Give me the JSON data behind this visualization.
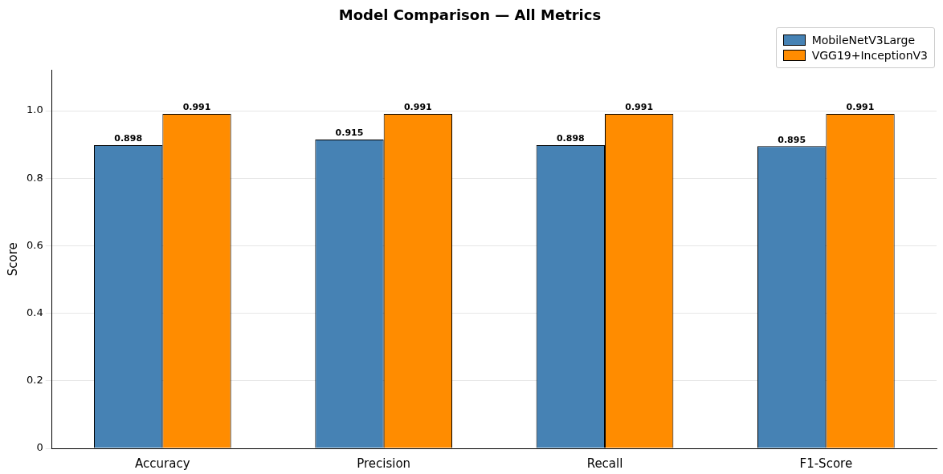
{
  "chart_data": {
    "type": "bar",
    "title": "Model Comparison — All Metrics",
    "ylabel": "Score",
    "categories": [
      "Accuracy",
      "Precision",
      "Recall",
      "F1-Score"
    ],
    "series": [
      {
        "name": "MobileNetV3Large",
        "color": "#4682b4",
        "values": [
          0.898,
          0.915,
          0.898,
          0.895
        ]
      },
      {
        "name": "VGG19+InceptionV3",
        "color": "#ff8c00",
        "values": [
          0.991,
          0.991,
          0.991,
          0.991
        ]
      }
    ],
    "ylim": [
      0,
      1.12
    ],
    "yticks": [
      0,
      {
        "value": 0.2,
        "label": "0.2"
      },
      {
        "value": 0.4,
        "label": "0.4"
      },
      {
        "value": 0.6,
        "label": "0.6"
      },
      {
        "value": 0.8,
        "label": "0.8"
      },
      {
        "value": 1,
        "label": "1.0"
      }
    ],
    "grid": "y",
    "legend": "top right",
    "data_labels": true
  }
}
